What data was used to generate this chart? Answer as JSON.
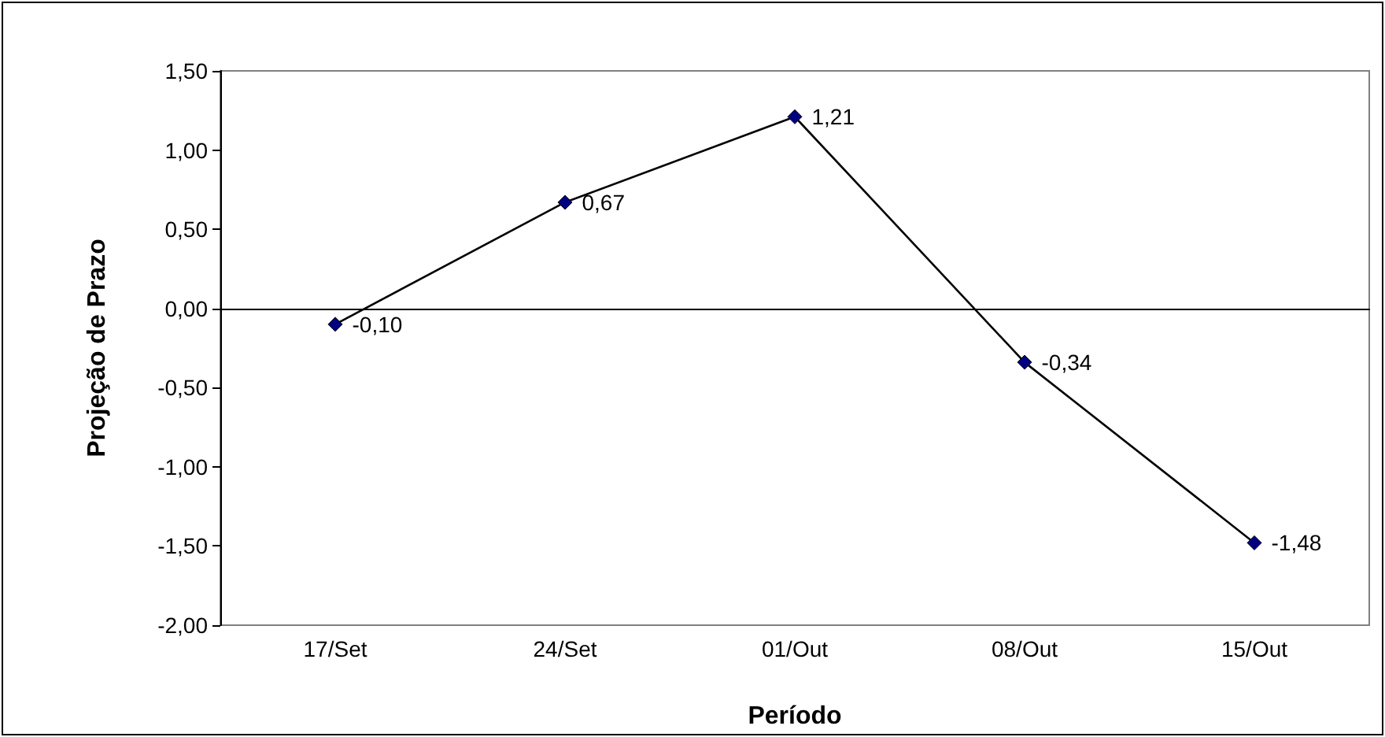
{
  "chart_data": {
    "type": "line",
    "xlabel": "Período",
    "ylabel": "Projeção de Prazo",
    "categories": [
      "17/Set",
      "24/Set",
      "01/Out",
      "08/Out",
      "15/Out"
    ],
    "series": [
      {
        "color": "#000080",
        "values": [
          -0.1,
          0.67,
          1.21,
          -0.34,
          -1.48
        ],
        "value_labels": [
          "-0,10",
          "0,67",
          "1,21",
          "-0,34",
          "-1,48"
        ]
      }
    ],
    "ylim": [
      -2,
      1.5
    ],
    "yticks": [
      {
        "value": -2,
        "label": "-2,00"
      },
      {
        "value": -1.5,
        "label": "-1,50"
      },
      {
        "value": -1,
        "label": "-1,00"
      },
      {
        "value": -0.5,
        "label": "-0,50"
      },
      {
        "value": 0,
        "label": "0,00"
      },
      {
        "value": 0.5,
        "label": "0,50"
      },
      {
        "value": 1,
        "label": "1,00"
      },
      {
        "value": 1.5,
        "label": "1,50"
      }
    ],
    "marker": "diamond",
    "line_style": "solid"
  }
}
